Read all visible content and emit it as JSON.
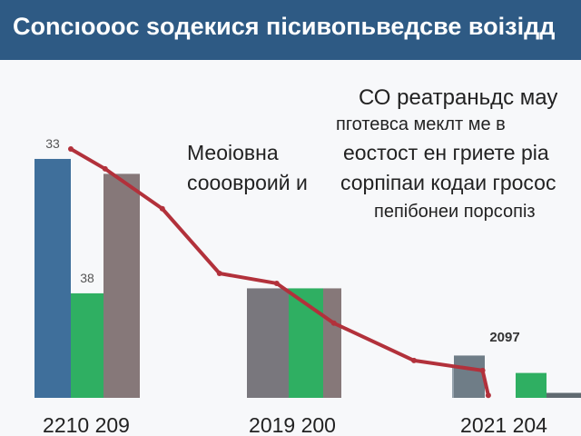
{
  "title": "Сonсıoooc soдекися пісивопьведсве воізідд",
  "annotations": {
    "right_block": [
      "СО реатраньдс мау",
      "пготевса меклт ме в",
      "еостост ен гриете ріа",
      "сорпіпаи кодаи гросос",
      "пепібонеи порсопіз"
    ],
    "left_block": [
      "Меоіовна",
      "сооовроий и"
    ]
  },
  "chart_data": {
    "type": "bar",
    "title": "Сonсıoooc soдекися пісивопьведсве воізідд",
    "xlabel": "",
    "ylabel": "",
    "ylim": [
      0,
      100
    ],
    "grid": false,
    "groups": [
      {
        "label": "2210 209",
        "bars": [
          {
            "value": 96,
            "color": "#3f6f9b",
            "label": "33"
          },
          {
            "value": 42,
            "color": "#2faf62",
            "label": "38"
          },
          {
            "value": 90,
            "color": "#867879",
            "label": ""
          }
        ]
      },
      {
        "label": "2019 200",
        "bars": [
          {
            "value": 44,
            "color": "#79777d",
            "label": ""
          },
          {
            "value": 44,
            "color": "#2faf62",
            "label": ""
          },
          {
            "value": 44,
            "color": "#867879",
            "label": ""
          }
        ]
      },
      {
        "label": "2021 204",
        "bars": [
          {
            "value": 13,
            "color": "#96a3ad",
            "label": ""
          },
          {
            "value": 17,
            "color": "#6f7d87",
            "label": ""
          },
          {
            "value": 10,
            "color": "#2faf62",
            "label": ""
          },
          {
            "value": 2,
            "color": "#606a70",
            "label": ""
          }
        ],
        "top_label": "2097"
      }
    ],
    "trend_line": {
      "color": "#b2313b",
      "points": [
        [
          0.0,
          100
        ],
        [
          0.3,
          92
        ],
        [
          0.8,
          76
        ],
        [
          1.3,
          50
        ],
        [
          1.8,
          46
        ],
        [
          2.3,
          30
        ],
        [
          3.0,
          15
        ],
        [
          3.6,
          11
        ],
        [
          3.65,
          1
        ]
      ]
    }
  }
}
